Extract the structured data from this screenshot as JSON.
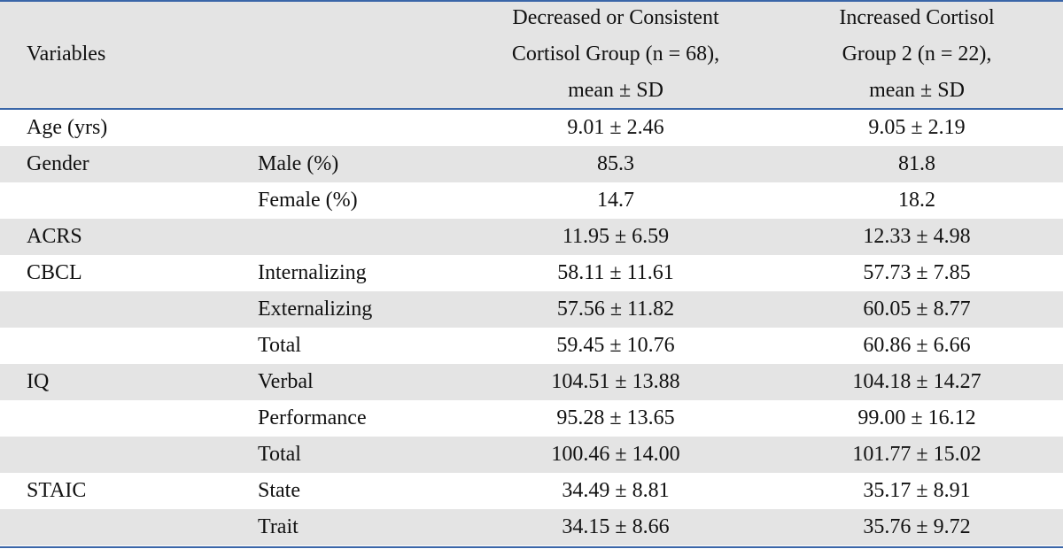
{
  "header": {
    "variables": "Variables",
    "col1": [
      "Decreased or Consistent",
      "Cortisol Group (n = 68),",
      "mean ± SD"
    ],
    "col2": [
      "Increased Cortisol",
      "Group 2 (n = 22),",
      "mean ± SD"
    ]
  },
  "rows": [
    {
      "var": "Age (yrs)",
      "sub": "",
      "g1": "9.01 ± 2.46",
      "g2": "9.05 ± 2.19"
    },
    {
      "var": "Gender",
      "sub": "Male (%)",
      "g1": "85.3",
      "g2": "81.8"
    },
    {
      "var": "",
      "sub": "Female (%)",
      "g1": "14.7",
      "g2": "18.2"
    },
    {
      "var": "ACRS",
      "sub": "",
      "g1": "11.95 ± 6.59",
      "g2": "12.33 ± 4.98"
    },
    {
      "var": "CBCL",
      "sub": "Internalizing",
      "g1": "58.11 ± 11.61",
      "g2": "57.73 ± 7.85"
    },
    {
      "var": "",
      "sub": "Externalizing",
      "g1": "57.56 ± 11.82",
      "g2": "60.05 ± 8.77"
    },
    {
      "var": "",
      "sub": "Total",
      "g1": "59.45 ± 10.76",
      "g2": "60.86 ± 6.66"
    },
    {
      "var": "IQ",
      "sub": "Verbal",
      "g1": "104.51 ± 13.88",
      "g2": "104.18 ± 14.27"
    },
    {
      "var": "",
      "sub": "Performance",
      "g1": "95.28 ± 13.65",
      "g2": "99.00 ± 16.12"
    },
    {
      "var": "",
      "sub": "Total",
      "g1": "100.46 ± 14.00",
      "g2": "101.77 ± 15.02"
    },
    {
      "var": "STAIC",
      "sub": "State",
      "g1": "34.49 ± 8.81",
      "g2": "35.17 ± 8.91"
    },
    {
      "var": "",
      "sub": "Trait",
      "g1": "34.15 ± 8.66",
      "g2": "35.76 ± 9.72"
    }
  ]
}
